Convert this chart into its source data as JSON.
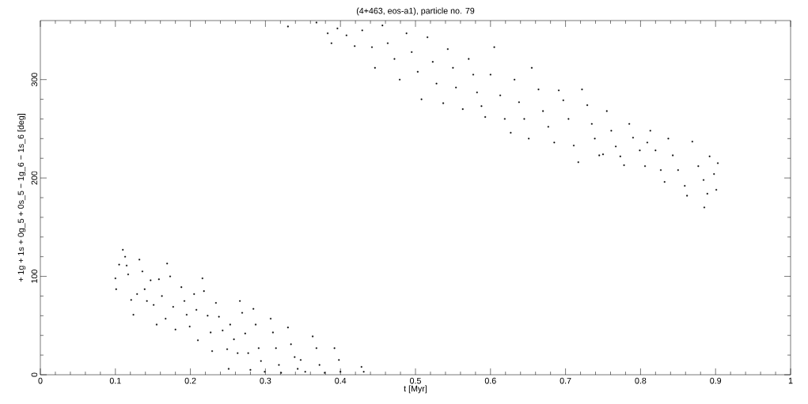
{
  "chart_data": {
    "type": "scatter",
    "title": "(4+463, eos-a1), particle no. 79",
    "xlabel": "t [Myr]",
    "ylabel": "+ 1g + 1s + 0g_5 + 0s_5 − 1g_6 − 1s_6 [deg]",
    "xlim": [
      0,
      1
    ],
    "ylim": [
      0,
      360
    ],
    "xticks": [
      0,
      0.1,
      0.2,
      0.3,
      0.4,
      0.5,
      0.6,
      0.7,
      0.8,
      0.9,
      1
    ],
    "yticks": [
      0,
      100,
      200,
      300
    ],
    "marker": "square",
    "series": [
      {
        "color": "#000000",
        "x": [
          0.1,
          0.101,
          0.105,
          0.11,
          0.113,
          0.115,
          0.117,
          0.121,
          0.124,
          0.129,
          0.132,
          0.136,
          0.139,
          0.142,
          0.147,
          0.151,
          0.155,
          0.158,
          0.162,
          0.167,
          0.169,
          0.173,
          0.177,
          0.18,
          0.188,
          0.192,
          0.195,
          0.199,
          0.205,
          0.208,
          0.21,
          0.216,
          0.218,
          0.223,
          0.227,
          0.229,
          0.234,
          0.238,
          0.243,
          0.249,
          0.251,
          0.253,
          0.258,
          0.263,
          0.266,
          0.269,
          0.273,
          0.277,
          0.28,
          0.284,
          0.287,
          0.291,
          0.294,
          0.299,
          0.307,
          0.31,
          0.314,
          0.318,
          0.321,
          0.33,
          0.334,
          0.339,
          0.343,
          0.347,
          0.353,
          0.363,
          0.368,
          0.372,
          0.379,
          0.392,
          0.398,
          0.4,
          0.428,
          0.431,
          0.33,
          0.368,
          0.383,
          0.388,
          0.396,
          0.408,
          0.419,
          0.429,
          0.442,
          0.446,
          0.456,
          0.463,
          0.472,
          0.479,
          0.488,
          0.495,
          0.503,
          0.508,
          0.516,
          0.523,
          0.528,
          0.537,
          0.543,
          0.55,
          0.554,
          0.563,
          0.571,
          0.577,
          0.582,
          0.588,
          0.593,
          0.6,
          0.605,
          0.613,
          0.619,
          0.627,
          0.632,
          0.638,
          0.645,
          0.651,
          0.655,
          0.664,
          0.67,
          0.677,
          0.685,
          0.691,
          0.697,
          0.704,
          0.711,
          0.717,
          0.722,
          0.729,
          0.735,
          0.739,
          0.745,
          0.75,
          0.755,
          0.761,
          0.767,
          0.773,
          0.778,
          0.785,
          0.79,
          0.799,
          0.806,
          0.809,
          0.813,
          0.82,
          0.827,
          0.832,
          0.837,
          0.843,
          0.85,
          0.859,
          0.862,
          0.869,
          0.877,
          0.884,
          0.889,
          0.892,
          0.898,
          0.901,
          0.903,
          0.885
        ],
        "values": [
          98,
          87,
          112,
          127,
          120,
          111,
          102,
          76,
          61,
          82,
          117,
          105,
          87,
          75,
          96,
          71,
          51,
          97,
          80,
          57,
          113,
          100,
          69,
          46,
          89,
          75,
          61,
          49,
          82,
          66,
          35,
          98,
          85,
          60,
          43,
          24,
          73,
          59,
          45,
          26,
          6,
          51,
          36,
          22,
          75,
          63,
          42,
          22,
          5,
          67,
          51,
          27,
          14,
          3,
          57,
          43,
          27,
          10,
          2,
          48,
          31,
          18,
          6,
          15,
          3,
          39,
          27,
          10,
          2,
          27,
          15,
          3,
          8,
          3,
          354,
          358,
          347,
          337,
          352,
          345,
          334,
          350,
          333,
          312,
          355,
          337,
          321,
          300,
          347,
          328,
          308,
          280,
          343,
          318,
          296,
          276,
          331,
          312,
          292,
          270,
          321,
          305,
          287,
          273,
          262,
          305,
          333,
          284,
          260,
          246,
          300,
          277,
          260,
          240,
          312,
          290,
          268,
          252,
          236,
          289,
          279,
          260,
          233,
          216,
          290,
          274,
          255,
          240,
          223,
          224,
          268,
          248,
          232,
          222,
          213,
          255,
          241,
          228,
          212,
          236,
          248,
          228,
          208,
          196,
          240,
          223,
          208,
          192,
          182,
          237,
          212,
          198,
          184,
          222,
          204,
          188,
          215,
          170
        ]
      }
    ]
  }
}
